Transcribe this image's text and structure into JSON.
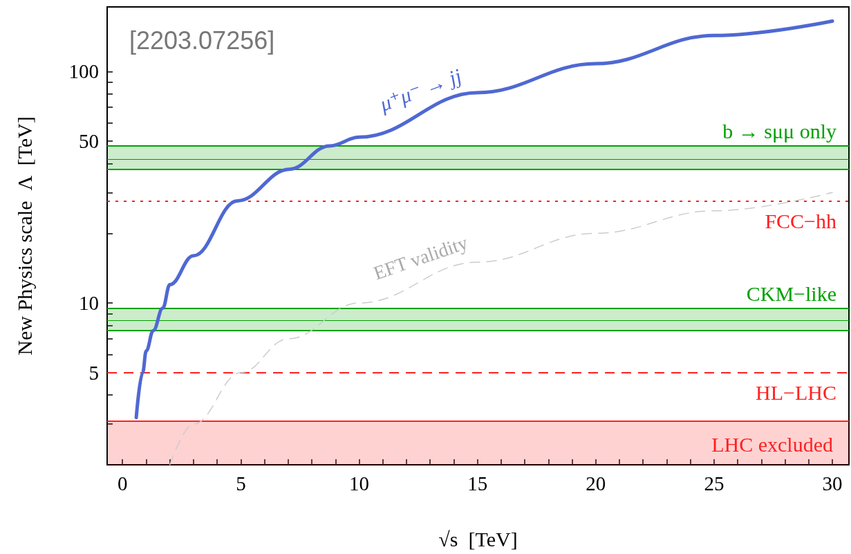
{
  "chart_data": {
    "type": "line",
    "xlabel": "√s  [TeV]",
    "ylabel": "New Physics scale  Λ  [TeV]",
    "annotations": [
      "[2203.07256]"
    ],
    "log": "y",
    "grid": false,
    "legend": false,
    "marker": "none",
    "xlim": [
      -0.65,
      30.7
    ],
    "xticks": [
      0,
      {
        "value": 1,
        "label": null
      },
      {
        "value": 2,
        "label": null
      },
      {
        "value": 3,
        "label": null
      },
      {
        "value": 4,
        "label": null
      },
      5,
      {
        "value": 6,
        "label": null
      },
      {
        "value": 7,
        "label": null
      },
      {
        "value": 8,
        "label": null
      },
      {
        "value": 9,
        "label": null
      },
      10,
      {
        "value": 11,
        "label": null
      },
      {
        "value": 12,
        "label": null
      },
      {
        "value": 13,
        "label": null
      },
      {
        "value": 14,
        "label": null
      },
      15,
      {
        "value": 16,
        "label": null
      },
      {
        "value": 17,
        "label": null
      },
      {
        "value": 18,
        "label": null
      },
      {
        "value": 19,
        "label": null
      },
      20,
      {
        "value": 21,
        "label": null
      },
      {
        "value": 22,
        "label": null
      },
      {
        "value": 23,
        "label": null
      },
      {
        "value": 24,
        "label": null
      },
      25,
      {
        "value": 26,
        "label": null
      },
      {
        "value": 27,
        "label": null
      },
      {
        "value": 28,
        "label": null
      },
      {
        "value": 29,
        "label": null
      },
      30
    ],
    "ylim": [
      2,
      190
    ],
    "yticks": [
      {
        "value": 3,
        "label": null
      },
      {
        "value": 4,
        "label": null
      },
      5,
      {
        "value": 6,
        "label": null
      },
      {
        "value": 7,
        "label": null
      },
      {
        "value": 8,
        "label": null
      },
      {
        "value": 9,
        "label": null
      },
      10,
      {
        "value": 20,
        "label": null
      },
      {
        "value": 30,
        "label": null
      },
      {
        "value": 40,
        "label": null
      },
      50,
      {
        "value": 60,
        "label": null
      },
      {
        "value": 70,
        "label": null
      },
      {
        "value": 80,
        "label": null
      },
      {
        "value": 90,
        "label": null
      },
      100
    ],
    "series": [
      {
        "name": "μ⁺μ⁻ → jj",
        "color": "#4f68d2",
        "x": [
          0.58,
          0.85,
          1,
          1.3,
          1.7,
          2,
          3,
          4.85,
          7.05,
          8.75,
          10,
          15,
          20,
          25,
          30
        ],
        "values": [
          3.2,
          5,
          6.2,
          7.6,
          9.5,
          12,
          16,
          27.6,
          37.8,
          47.7,
          52,
          81,
          108,
          143,
          165
        ]
      },
      {
        "name": "EFT validity",
        "color": "#cccccc",
        "line_style": "dashed",
        "x": [
          2,
          3,
          5,
          7,
          10,
          15,
          20,
          25,
          30
        ],
        "values": [
          2,
          3,
          5,
          7,
          10,
          15,
          20,
          25,
          30
        ]
      }
    ],
    "bands": [
      {
        "axis": "y",
        "from": 37.8,
        "to": 47.7,
        "label": "b → sμμ only",
        "color": "#00a000"
      },
      {
        "axis": "y",
        "from": 7.6,
        "to": 9.5,
        "label": "CKM−like",
        "color": "#00a000"
      },
      {
        "axis": "y",
        "from": 2,
        "to": 3.1,
        "label": "LHC excluded",
        "color": "#ff2020"
      }
    ],
    "ref_lines": [
      {
        "axis": "y",
        "value": 47.7,
        "color": "#00a000",
        "line_style": "solid"
      },
      {
        "axis": "y",
        "value": 37.8,
        "color": "#00a000",
        "line_style": "solid"
      },
      {
        "axis": "y",
        "value": 9.5,
        "color": "#00a000",
        "line_style": "solid"
      },
      {
        "axis": "y",
        "value": 7.6,
        "color": "#00a000",
        "line_style": "solid"
      },
      {
        "axis": "y",
        "value": 3.1,
        "color": "#ff2020",
        "line_style": "solid"
      },
      {
        "axis": "y",
        "value": 41.8,
        "color": "#00a000",
        "line_style": "solid"
      },
      {
        "axis": "y",
        "value": 8.4,
        "color": "#00a000",
        "line_style": "solid"
      },
      {
        "axis": "y",
        "value": 27.6,
        "label": "FCC−hh",
        "color": "#ff2020",
        "line_style": "dotted"
      },
      {
        "axis": "y",
        "value": 5,
        "label": "HL−LHC",
        "color": "#ff2020",
        "line_style": "dashed"
      }
    ]
  }
}
